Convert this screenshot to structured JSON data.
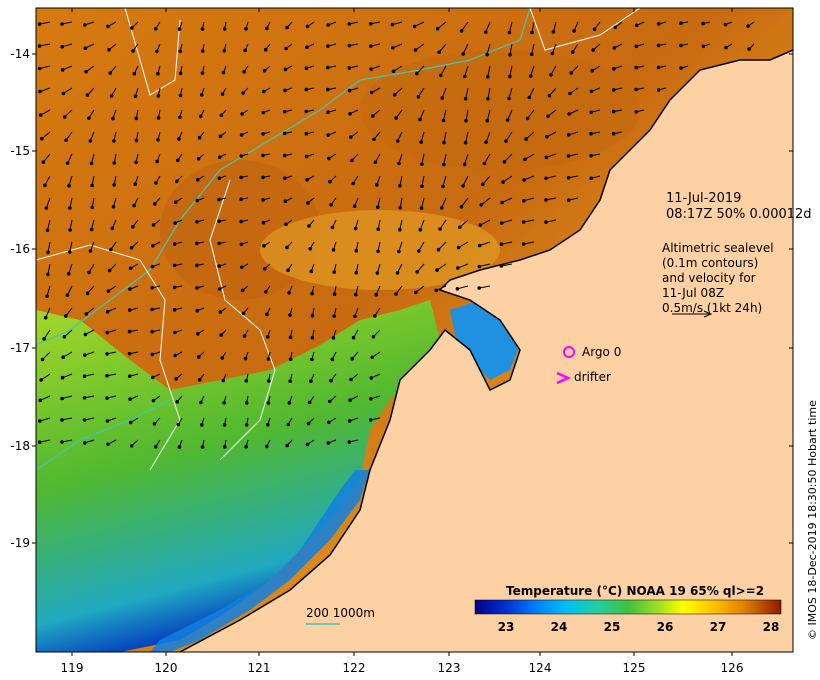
{
  "map": {
    "title_date": "11-Jul-2019",
    "title_detail": "08:17Z  50% 0.00012d",
    "altimetry_note": [
      "Altimetric sealevel",
      "(0.1m contours)",
      "and velocity for",
      "11-Jul 08Z",
      "0.5m/s (1kt 24h)"
    ],
    "argo_label": "Argo 0",
    "drifter_label": "drifter",
    "depth_contour_label": "200  1000m",
    "credit": "© IMOS 18-Dec-2019 18:30:50 Hobart time",
    "x_ticks": [
      "119",
      "120",
      "121",
      "122",
      "123",
      "124",
      "125",
      "126"
    ],
    "y_ticks": [
      "-14",
      "-15",
      "-16",
      "-17",
      "-18",
      "-19"
    ]
  },
  "legend": {
    "title": "Temperature (°C) NOAA 19 65% ql>=2",
    "ticks": [
      "23",
      "24",
      "25",
      "26",
      "27",
      "28"
    ],
    "colors": [
      "#00008b",
      "#0050ff",
      "#00b4f0",
      "#20d0a0",
      "#40c040",
      "#a0e020",
      "#ffff00",
      "#ffc000",
      "#ff8000",
      "#d06000",
      "#a04000",
      "#702000"
    ]
  },
  "colors": {
    "land": "#fdd1a3",
    "ocean_warm": "#d48a20",
    "contour_isobath": "#40c8b0",
    "contour_sealevel": "#ffffff",
    "argo_marker": "#ff00ff"
  }
}
